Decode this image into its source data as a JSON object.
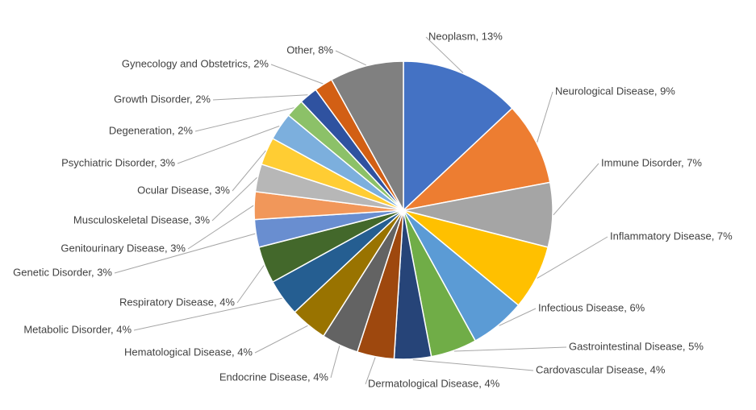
{
  "chart_data": {
    "type": "pie",
    "title": "",
    "slices": [
      {
        "label": "Neoplasm",
        "value": 13,
        "display": "13%",
        "color": "#4472C4"
      },
      {
        "label": "Neurological Disease",
        "value": 9,
        "display": "9%",
        "color": "#ED7D31"
      },
      {
        "label": "Immune Disorder",
        "value": 7,
        "display": "7%",
        "color": "#A5A5A5"
      },
      {
        "label": "Inflammatory Disease",
        "value": 7,
        "display": "7%",
        "color": "#FFC000"
      },
      {
        "label": "Infectious Disease",
        "value": 6,
        "display": "6%",
        "color": "#5B9BD5"
      },
      {
        "label": "Gastrointestinal Disease",
        "value": 5,
        "display": "5%",
        "color": "#70AD47"
      },
      {
        "label": "Cardovascular Disease",
        "value": 4,
        "display": "4%",
        "color": "#264478"
      },
      {
        "label": "Dermatological Disease",
        "value": 4,
        "display": "4%",
        "color": "#9E480E"
      },
      {
        "label": "Endocrine Disease",
        "value": 4,
        "display": "4%",
        "color": "#636363"
      },
      {
        "label": "Hematological Disease",
        "value": 4,
        "display": "4%",
        "color": "#997300"
      },
      {
        "label": "Metabolic Disorder",
        "value": 4,
        "display": "4%",
        "color": "#255E91"
      },
      {
        "label": "Respiratory Disease",
        "value": 4,
        "display": "4%",
        "color": "#43682B"
      },
      {
        "label": "Genetic Disorder",
        "value": 3,
        "display": "3%",
        "color": "#698ED0"
      },
      {
        "label": "Genitourinary Disease",
        "value": 3,
        "display": "3%",
        "color": "#F1975A"
      },
      {
        "label": "Musculoskeletal Disease",
        "value": 3,
        "display": "3%",
        "color": "#B7B7B7"
      },
      {
        "label": "Ocular Disease",
        "value": 3,
        "display": "3%",
        "color": "#FFCD33"
      },
      {
        "label": "Psychiatric Disorder",
        "value": 3,
        "display": "3%",
        "color": "#7CAFDD"
      },
      {
        "label": "Degeneration",
        "value": 2,
        "display": "2%",
        "color": "#8CC168"
      },
      {
        "label": "Growth Disorder",
        "value": 2,
        "display": "2%",
        "color": "#2F52A0"
      },
      {
        "label": "Gynecology and Obstetrics",
        "value": 2,
        "display": "2%",
        "color": "#D25F14"
      },
      {
        "label": "Other",
        "value": 8,
        "display": "8%",
        "color": "#808080"
      }
    ]
  }
}
